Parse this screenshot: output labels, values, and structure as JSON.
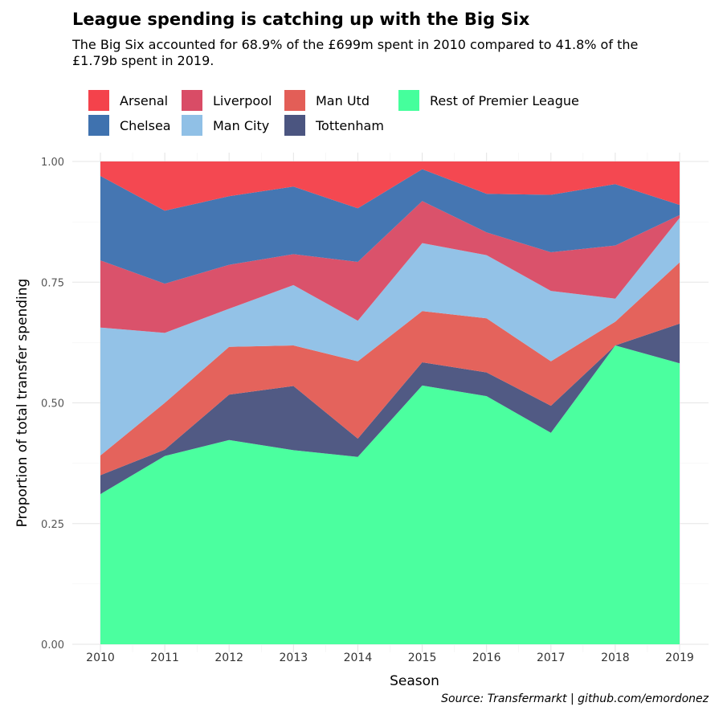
{
  "header": {
    "title": "League spending is catching up with the Big Six",
    "subtitle": "The Big Six accounted for 68.9% of the £699m spent in 2010 compared to 41.8% of the £1.79b spent in 2019."
  },
  "source": "Source: Transfermarkt | github.com/emordonez",
  "chart_data": {
    "type": "area",
    "stacked": true,
    "xlabel": "Season",
    "ylabel": "Proportion of total transfer spending",
    "ylim": [
      0,
      1
    ],
    "yticks": [
      "0.00",
      "0.25",
      "0.50",
      "0.75",
      "1.00"
    ],
    "x": [
      "2010",
      "2011",
      "2012",
      "2013",
      "2014",
      "2015",
      "2016",
      "2017",
      "2018",
      "2019"
    ],
    "grid": true,
    "legend_position": "top",
    "series": [
      {
        "name": "Rest of Premier League",
        "color": "#45ff9c",
        "values": [
          0.311,
          0.39,
          0.423,
          0.402,
          0.388,
          0.536,
          0.514,
          0.438,
          0.619,
          0.582
        ]
      },
      {
        "name": "Tottenham",
        "color": "#4b5580",
        "values": [
          0.039,
          0.013,
          0.094,
          0.133,
          0.038,
          0.048,
          0.049,
          0.056,
          0.0,
          0.082
        ]
      },
      {
        "name": "Man Utd",
        "color": "#e35e57",
        "values": [
          0.041,
          0.097,
          0.099,
          0.084,
          0.16,
          0.106,
          0.112,
          0.092,
          0.049,
          0.127
        ]
      },
      {
        "name": "Man City",
        "color": "#90c0e6",
        "values": [
          0.265,
          0.145,
          0.079,
          0.125,
          0.084,
          0.141,
          0.131,
          0.146,
          0.048,
          0.092
        ]
      },
      {
        "name": "Liverpool",
        "color": "#d94c66",
        "values": [
          0.139,
          0.102,
          0.091,
          0.064,
          0.122,
          0.087,
          0.047,
          0.08,
          0.11,
          0.006
        ]
      },
      {
        "name": "Chelsea",
        "color": "#3f72af",
        "values": [
          0.175,
          0.151,
          0.142,
          0.14,
          0.111,
          0.066,
          0.08,
          0.119,
          0.127,
          0.021
        ]
      },
      {
        "name": "Arsenal",
        "color": "#f4424b",
        "values": [
          0.03,
          0.102,
          0.072,
          0.052,
          0.097,
          0.016,
          0.067,
          0.069,
          0.047,
          0.09
        ]
      }
    ],
    "legend_order": [
      "Arsenal",
      "Chelsea",
      "Liverpool",
      "Man City",
      "Man Utd",
      "Tottenham",
      "Rest of Premier League"
    ]
  }
}
